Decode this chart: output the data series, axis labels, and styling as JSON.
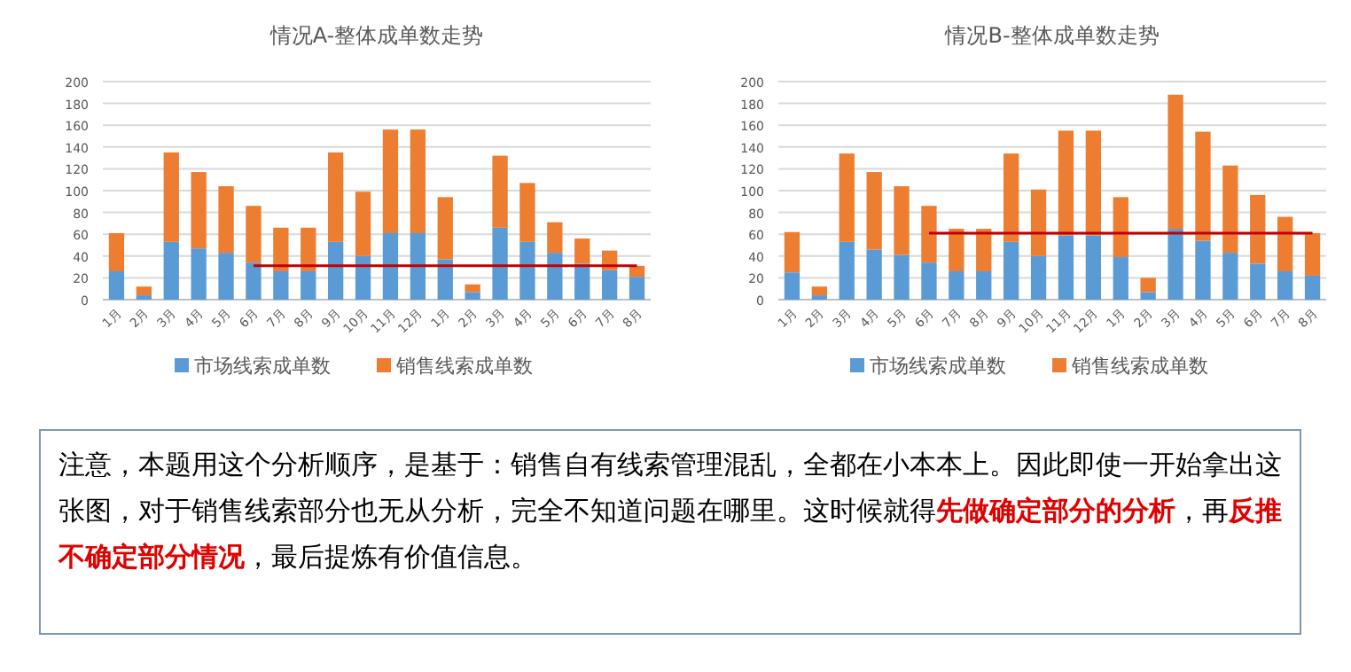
{
  "chart_data": [
    {
      "type": "bar",
      "title": "情况A-整体成单数走势",
      "stacked": true,
      "grid": "y",
      "legend": "bottom",
      "categories": [
        "1月",
        "2月",
        "3月",
        "4月",
        "5月",
        "6月",
        "7月",
        "8月",
        "9月",
        "10月",
        "11月",
        "12月",
        "1月",
        "2月",
        "3月",
        "4月",
        "5月",
        "6月",
        "7月",
        "8月"
      ],
      "ylim": [
        0,
        200
      ],
      "yticks": [
        0,
        20,
        40,
        60,
        80,
        100,
        120,
        140,
        160,
        180,
        200
      ],
      "series": [
        {
          "name": "市场线索成单数",
          "color": "#5b9bd5",
          "values": [
            26,
            4,
            53,
            47,
            43,
            34,
            26,
            26,
            53,
            40,
            61,
            61,
            37,
            7,
            66,
            53,
            43,
            33,
            27,
            21
          ]
        },
        {
          "name": "销售线索成单数",
          "color": "#ed7d31",
          "values": [
            35,
            8,
            82,
            70,
            61,
            52,
            40,
            40,
            82,
            59,
            95,
            95,
            57,
            7,
            66,
            54,
            28,
            23,
            18,
            10
          ]
        },
        {
          "type": "line",
          "color": "#c00000",
          "values": [
            null,
            null,
            null,
            null,
            null,
            31,
            31,
            31,
            31,
            31,
            31,
            31,
            31,
            31,
            31,
            31,
            31,
            31,
            31,
            31
          ]
        }
      ]
    },
    {
      "type": "bar",
      "title": "情况B-整体成单数走势",
      "stacked": true,
      "grid": "y",
      "legend": "bottom",
      "categories": [
        "1月",
        "2月",
        "3月",
        "4月",
        "5月",
        "6月",
        "7月",
        "8月",
        "9月",
        "10月",
        "11月",
        "12月",
        "1月",
        "2月",
        "3月",
        "4月",
        "5月",
        "6月",
        "7月",
        "8月"
      ],
      "ylim": [
        0,
        200
      ],
      "yticks": [
        0,
        20,
        40,
        60,
        80,
        100,
        120,
        140,
        160,
        180,
        200
      ],
      "series": [
        {
          "name": "市场线索成单数",
          "color": "#5b9bd5",
          "values": [
            25,
            4,
            53,
            46,
            41,
            34,
            26,
            26,
            53,
            40,
            59,
            59,
            39,
            7,
            65,
            54,
            43,
            33,
            26,
            22
          ]
        },
        {
          "name": "销售线索成单数",
          "color": "#ed7d31",
          "values": [
            37,
            8,
            81,
            71,
            63,
            52,
            39,
            39,
            81,
            61,
            96,
            96,
            55,
            13,
            123,
            100,
            80,
            63,
            50,
            39
          ]
        },
        {
          "type": "line",
          "color": "#c00000",
          "values": [
            null,
            null,
            null,
            null,
            null,
            61,
            61,
            61,
            61,
            61,
            61,
            61,
            61,
            61,
            61,
            61,
            61,
            61,
            61,
            61
          ]
        }
      ]
    },
    {
      "type": "other",
      "annotations": [
        "注意，本题用这个分析顺序，是基于：销售自有线索管理混乱，全都在小本本上。因此即使一开始拿出这张图，对于销售线索部分也无从分析，完全不知道问题在哪里。这时候就得**先做确定部分的分析**，再**反推不确定部分情况**，最后提炼有价值信息。"
      ]
    }
  ]
}
